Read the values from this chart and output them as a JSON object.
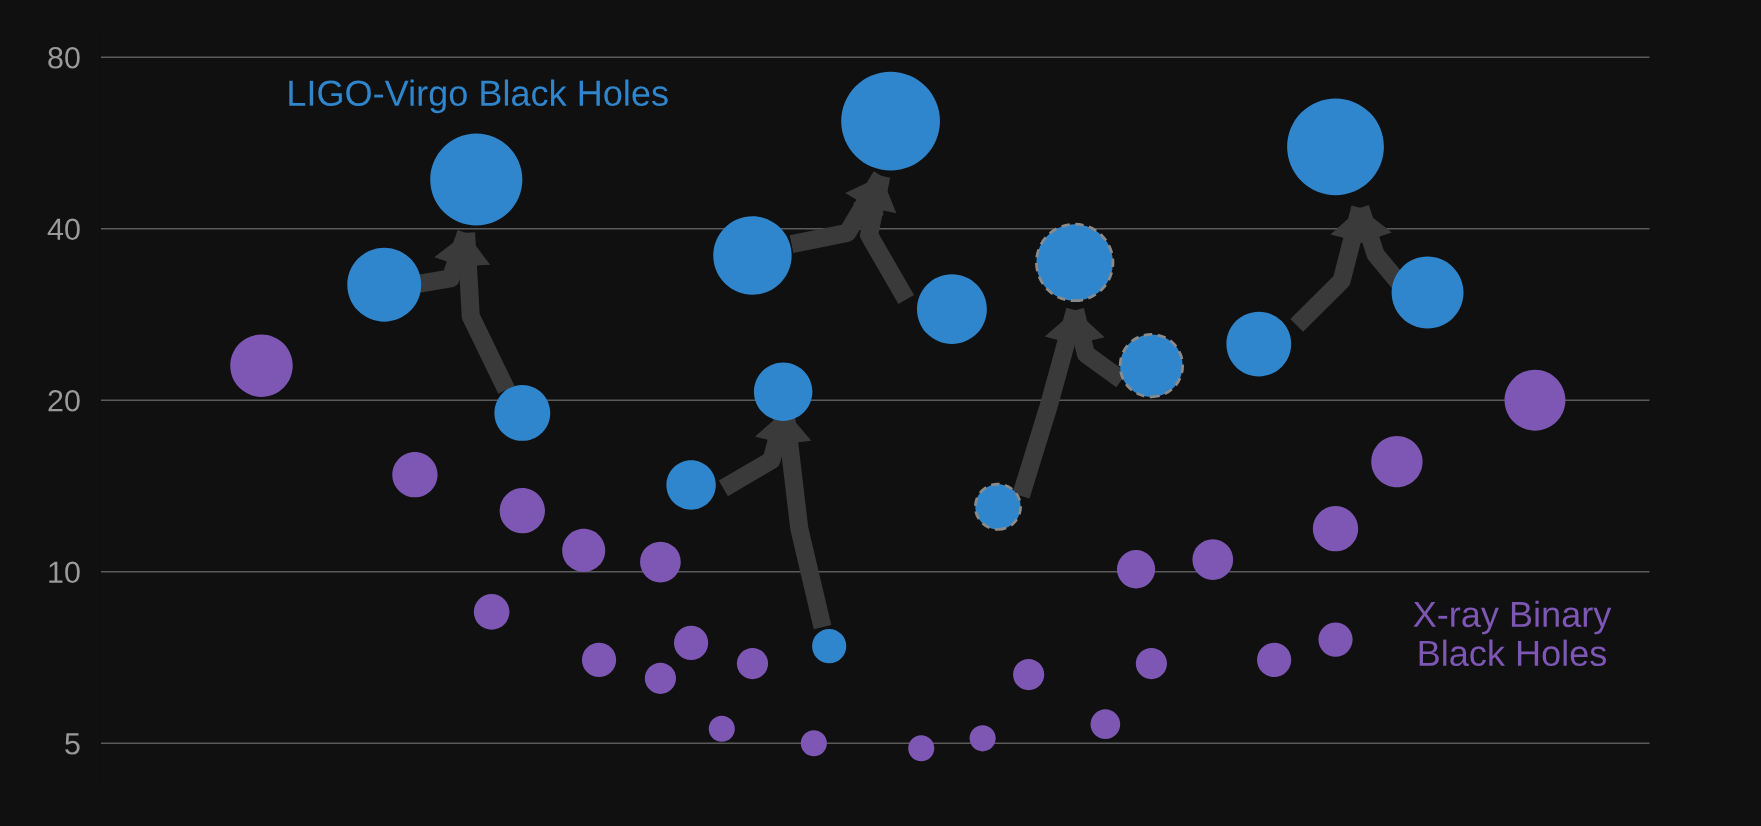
{
  "chart_data": {
    "type": "bubble",
    "log": "y",
    "grid": "y",
    "legend": false,
    "categories": [
      null,
      null,
      null,
      null,
      null,
      null,
      null,
      null,
      null,
      null,
      null,
      null,
      null,
      null,
      null,
      null,
      null,
      null,
      null,
      null,
      null,
      null,
      null,
      null,
      null,
      null,
      null,
      null,
      null,
      null,
      null,
      null,
      null,
      null,
      null,
      null,
      null,
      null,
      null,
      null,
      null,
      null,
      null,
      null,
      null,
      null,
      null,
      null,
      null,
      null,
      null,
      null,
      null,
      null,
      null,
      null,
      null,
      null,
      null,
      null,
      null,
      null,
      null,
      null,
      null,
      null,
      null,
      null,
      null,
      null,
      null,
      null,
      null,
      null,
      null,
      null,
      null,
      null,
      null,
      null,
      null,
      null,
      null,
      null,
      null,
      null,
      null,
      null,
      null,
      null,
      null,
      null,
      null,
      null,
      null,
      null,
      null,
      null,
      null,
      null,
      null
    ],
    "ylim": [
      4.2,
      90
    ],
    "yticks": [
      5,
      10,
      20,
      40,
      80
    ],
    "series": [
      {
        "name": "LIGO-Virgo Black Holes",
        "color": "#2f86cc",
        "values": [
          null,
          null,
          null,
          null,
          null,
          null,
          null,
          null,
          null,
          null,
          null,
          null,
          null,
          null,
          null,
          null,
          null,
          null,
          31.9,
          null,
          null,
          null,
          null,
          null,
          48.8,
          null,
          null,
          19.0,
          null,
          null,
          null,
          null,
          null,
          null,
          null,
          null,
          null,
          null,
          14.2,
          null,
          null,
          null,
          35.9,
          null,
          20.7,
          null,
          null,
          7.4,
          null,
          null,
          null,
          61.8,
          null,
          null,
          null,
          28.9,
          null,
          null,
          null,
          null,
          null,
          null,
          null,
          null,
          null,
          null,
          null,
          null,
          null,
          null,
          null,
          null,
          null,
          null,
          null,
          25.1,
          null,
          null,
          null,
          null,
          55.7,
          null,
          null,
          null,
          null,
          null,
          30.9,
          null,
          null,
          null,
          null,
          null,
          null,
          null,
          null,
          null,
          null,
          null,
          null,
          null,
          null
        ],
        "sizes": [
          null,
          null,
          null,
          null,
          null,
          null,
          null,
          null,
          null,
          null,
          null,
          null,
          null,
          null,
          null,
          null,
          null,
          null,
          0.56,
          null,
          null,
          null,
          null,
          null,
          0.87,
          null,
          null,
          0.32,
          null,
          null,
          null,
          null,
          null,
          null,
          null,
          null,
          null,
          null,
          0.25,
          null,
          null,
          null,
          0.63,
          null,
          0.35,
          null,
          null,
          0.12,
          null,
          null,
          null,
          1,
          null,
          null,
          null,
          0.5,
          null,
          null,
          null,
          null,
          null,
          null,
          null,
          null,
          null,
          null,
          null,
          null,
          null,
          null,
          null,
          null,
          null,
          null,
          null,
          0.43,
          null,
          null,
          null,
          null,
          0.96,
          null,
          null,
          null,
          null,
          null,
          0.53,
          null,
          null,
          null,
          null,
          null,
          null,
          null,
          null,
          null,
          null,
          null,
          null,
          null,
          null
        ]
      },
      {
        "color": "#2f86cc",
        "line_style": "dashed",
        "values": [
          null,
          null,
          null,
          null,
          null,
          null,
          null,
          null,
          null,
          null,
          null,
          null,
          null,
          null,
          null,
          null,
          null,
          null,
          null,
          null,
          null,
          null,
          null,
          null,
          null,
          null,
          null,
          null,
          null,
          null,
          null,
          null,
          null,
          null,
          null,
          null,
          null,
          null,
          null,
          null,
          null,
          null,
          null,
          null,
          null,
          null,
          null,
          null,
          null,
          null,
          null,
          null,
          null,
          null,
          null,
          null,
          null,
          null,
          13.0,
          null,
          null,
          null,
          null,
          34.9,
          null,
          null,
          null,
          null,
          23.0,
          null,
          null,
          null,
          null,
          null,
          null,
          null,
          null,
          null,
          null,
          null,
          null,
          null,
          null,
          null,
          null,
          null,
          null,
          null,
          null,
          null,
          null,
          null,
          null,
          null,
          null,
          null,
          null,
          null,
          null,
          null,
          null
        ],
        "sizes": [
          null,
          null,
          null,
          null,
          null,
          null,
          null,
          null,
          null,
          null,
          null,
          null,
          null,
          null,
          null,
          null,
          null,
          null,
          null,
          null,
          null,
          null,
          null,
          null,
          null,
          null,
          null,
          null,
          null,
          null,
          null,
          null,
          null,
          null,
          null,
          null,
          null,
          null,
          null,
          null,
          null,
          null,
          null,
          null,
          null,
          null,
          null,
          null,
          null,
          null,
          null,
          null,
          null,
          null,
          null,
          null,
          null,
          null,
          0.21,
          null,
          null,
          null,
          null,
          0.6,
          null,
          null,
          null,
          null,
          0.4,
          null,
          null,
          null,
          null,
          null,
          null,
          null,
          null,
          null,
          null,
          null,
          null,
          null,
          null,
          null,
          null,
          null,
          null,
          null,
          null,
          null,
          null,
          null,
          null,
          null,
          null,
          null,
          null,
          null,
          null,
          null,
          null
        ]
      },
      {
        "name": "X-ray Binary\nBlack Holes",
        "color": "#7e57b5",
        "values": [
          null,
          null,
          null,
          null,
          null,
          null,
          null,
          null,
          null,
          null,
          23.0,
          null,
          null,
          null,
          null,
          null,
          null,
          null,
          null,
          null,
          14.8,
          null,
          null,
          null,
          null,
          8.5,
          null,
          12.8,
          null,
          null,
          null,
          10.9,
          7.0,
          null,
          null,
          null,
          10.4,
          null,
          7.5,
          null,
          5.3,
          null,
          6.9,
          null,
          null,
          null,
          5.0,
          null,
          null,
          null,
          null,
          null,
          null,
          4.9,
          null,
          null,
          null,
          5.1,
          null,
          null,
          6.6,
          null,
          null,
          null,
          null,
          5.4,
          null,
          10.1,
          6.9,
          null,
          null,
          null,
          10.5,
          null,
          null,
          null,
          7.0,
          null,
          null,
          null,
          11.9,
          null,
          null,
          null,
          15.6,
          null,
          null,
          null,
          null,
          null,
          null,
          null,
          null,
          20.0,
          null,
          null,
          null,
          null,
          null,
          null,
          null
        ],
        "sizes": [
          null,
          null,
          null,
          null,
          null,
          null,
          null,
          null,
          null,
          null,
          0.4,
          null,
          null,
          null,
          null,
          null,
          null,
          null,
          null,
          null,
          0.21,
          null,
          null,
          null,
          null,
          0.13,
          null,
          0.21,
          null,
          null,
          null,
          0.19,
          0.12,
          null,
          null,
          null,
          0.17,
          null,
          0.12,
          null,
          0.07,
          null,
          0.1,
          null,
          null,
          null,
          0.07,
          null,
          null,
          null,
          null,
          null,
          null,
          0.07,
          null,
          null,
          null,
          0.07,
          null,
          null,
          0.1,
          null,
          null,
          null,
          null,
          0.09,
          null,
          0.15,
          0.1,
          null,
          null,
          null,
          0.17,
          null,
          null,
          null,
          0.12,
          null,
          null,
          null,
          0.21,
          null,
          null,
          null,
          0.27,
          null,
          null,
          null,
          null,
          null,
          null,
          null,
          null,
          0.38,
          null,
          null,
          null,
          null,
          null,
          null,
          null
        ]
      },
      {
        "color": "#7e57b5",
        "values": [
          null,
          null,
          null,
          null,
          null,
          null,
          null,
          null,
          null,
          null,
          null,
          null,
          null,
          null,
          null,
          null,
          null,
          null,
          null,
          null,
          null,
          null,
          null,
          null,
          null,
          null,
          null,
          null,
          null,
          null,
          null,
          null,
          null,
          null,
          null,
          null,
          6.5,
          null,
          null,
          null,
          null,
          null,
          null,
          null,
          null,
          null,
          null,
          null,
          null,
          null,
          null,
          null,
          null,
          null,
          null,
          null,
          null,
          null,
          null,
          null,
          null,
          null,
          null,
          null,
          null,
          null,
          null,
          null,
          null,
          null,
          null,
          null,
          null,
          null,
          null,
          null,
          null,
          null,
          null,
          null,
          7.6,
          null,
          null,
          null,
          null,
          null,
          null,
          null,
          null,
          null,
          null,
          null,
          null,
          null,
          null,
          null,
          null,
          null,
          null,
          null,
          null
        ],
        "sizes": [
          null,
          null,
          null,
          null,
          null,
          null,
          null,
          null,
          null,
          null,
          null,
          null,
          null,
          null,
          null,
          null,
          null,
          null,
          null,
          null,
          null,
          null,
          null,
          null,
          null,
          null,
          null,
          null,
          null,
          null,
          null,
          null,
          null,
          null,
          null,
          null,
          0.1,
          null,
          null,
          null,
          null,
          null,
          null,
          null,
          null,
          null,
          null,
          null,
          null,
          null,
          null,
          null,
          null,
          null,
          null,
          null,
          null,
          null,
          null,
          null,
          null,
          null,
          null,
          null,
          null,
          null,
          null,
          null,
          null,
          null,
          null,
          null,
          null,
          null,
          null,
          null,
          null,
          null,
          null,
          null,
          0.12,
          null,
          null,
          null,
          null,
          null,
          null,
          null,
          null,
          null,
          null,
          null,
          null,
          null,
          null,
          null,
          null,
          null,
          null,
          null,
          null
        ]
      }
    ]
  }
}
